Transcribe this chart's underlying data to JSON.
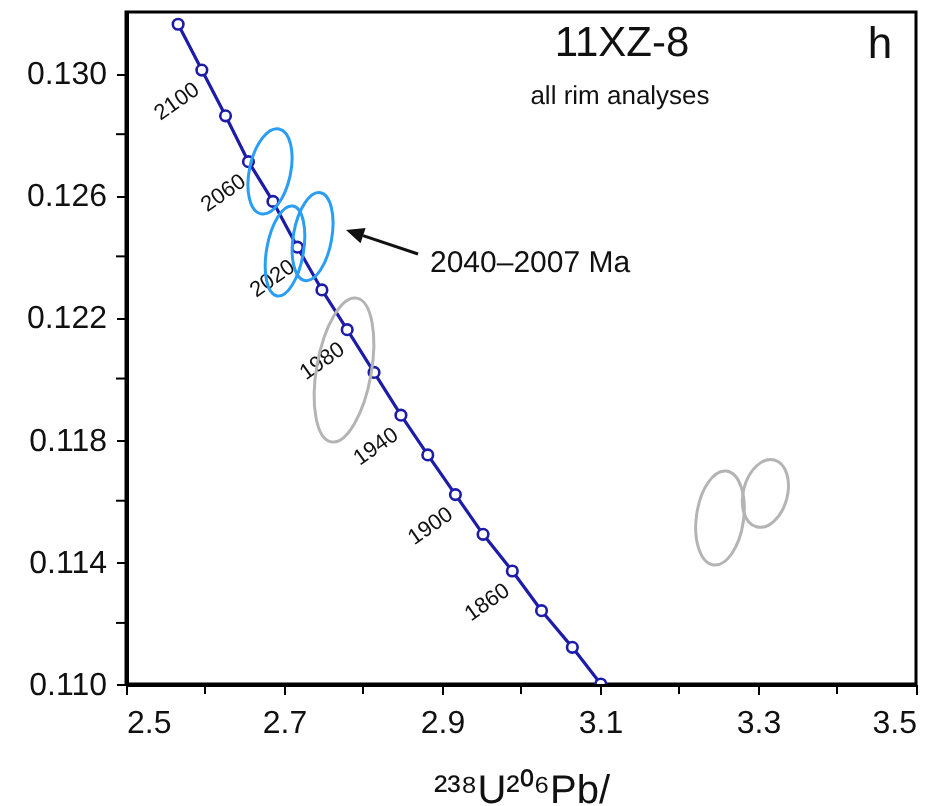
{
  "chart_data": {
    "type": "line",
    "title": "11XZ-8",
    "subtitle": "all rim analyses",
    "xlabel": "²³⁸U²⁰⁶Pb/",
    "annotations": [
      "h",
      "2040–2007 Ma",
      {
        "text": "2100",
        "x": 2.596,
        "y": 0.1301
      },
      {
        "text": "2060",
        "x": 2.655,
        "y": 0.1271
      },
      {
        "text": "2020",
        "x": 2.717,
        "y": 0.1243
      },
      {
        "text": "1980",
        "x": 2.78,
        "y": 0.1216
      },
      {
        "text": "1940",
        "x": 2.848,
        "y": 0.1188
      },
      {
        "text": "1900",
        "x": 2.917,
        "y": 0.1162
      },
      {
        "text": "1860",
        "x": 2.989,
        "y": 0.1137
      }
    ],
    "xlim": [
      2.5,
      3.5
    ],
    "ylim": [
      0.11,
      0.132
    ],
    "xticks": [
      2.5,
      {
        "value": 2.6,
        "label": null
      },
      2.7,
      {
        "value": 2.8,
        "label": null
      },
      2.9,
      {
        "value": 3.0,
        "label": null
      },
      3.1,
      {
        "value": 3.2,
        "label": null
      },
      3.3,
      {
        "value": 3.4,
        "label": null
      },
      3.5
    ],
    "yticks": [
      {
        "value": 0.11,
        "label": "0.110"
      },
      {
        "value": 0.112,
        "label": null
      },
      {
        "value": 0.114,
        "label": "0.114"
      },
      {
        "value": 0.116,
        "label": null
      },
      {
        "value": 0.118,
        "label": "0.118"
      },
      {
        "value": 0.12,
        "label": null
      },
      {
        "value": 0.122,
        "label": "0.122"
      },
      {
        "value": 0.124,
        "label": null
      },
      {
        "value": 0.126,
        "label": "0.126"
      },
      {
        "value": 0.128,
        "label": null
      },
      {
        "value": 0.13,
        "label": "0.130"
      }
    ],
    "grid": false,
    "series": [
      {
        "color": "#1c1ca8",
        "marker": "circle",
        "x": [
          2.566,
          2.596,
          2.626,
          2.655,
          2.686,
          2.717,
          2.748,
          2.78,
          2.814,
          2.848,
          2.882,
          2.917,
          2.952,
          2.989,
          3.026,
          3.065,
          3.101
        ],
        "values": [
          0.1316,
          0.1301,
          0.1286,
          0.1271,
          0.1258,
          0.1243,
          0.1229,
          0.1216,
          0.1202,
          0.1188,
          0.1175,
          0.1162,
          0.1149,
          0.1137,
          0.1124,
          0.1112,
          0.11
        ]
      }
    ]
  }
}
